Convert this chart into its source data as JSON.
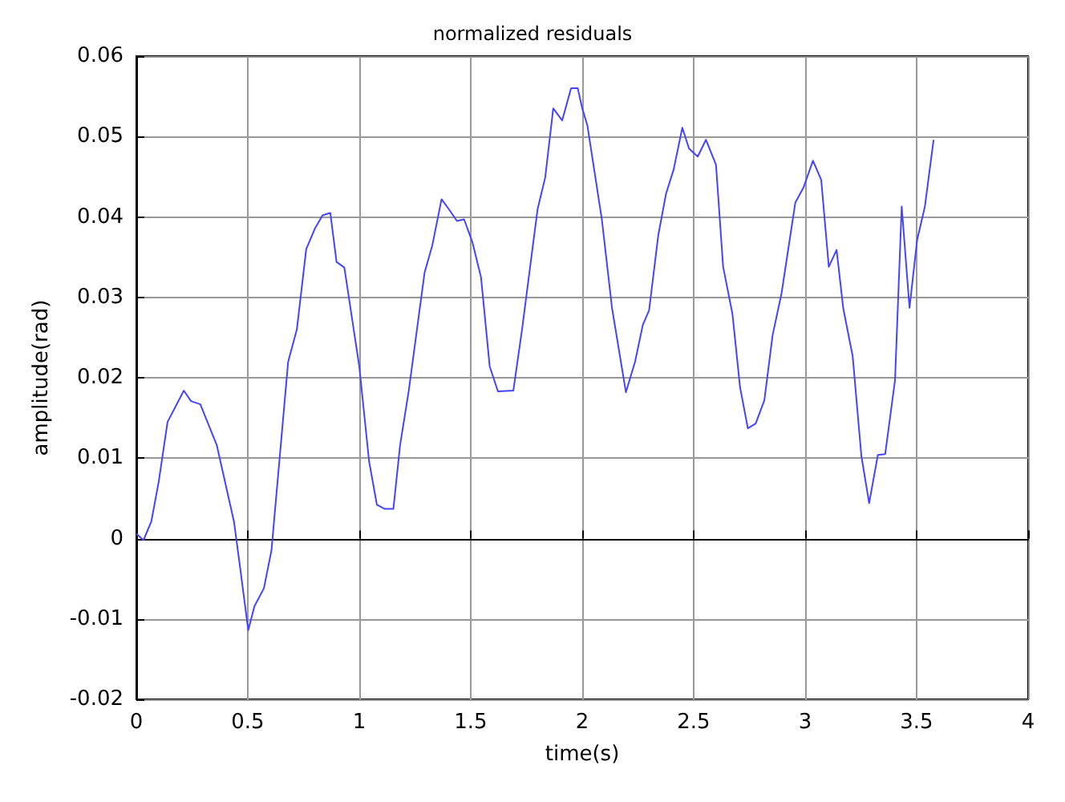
{
  "chart_data": {
    "type": "line",
    "title": "normalized residuals",
    "xlabel": "time(s)",
    "ylabel": "amplitude(rad)",
    "xlim": [
      0,
      4
    ],
    "xticks": [
      0,
      0.5,
      1,
      1.5,
      2,
      2.5,
      3,
      3.5,
      4
    ],
    "ylim": [
      -0.02,
      0.06
    ],
    "yticks": [
      -0.02,
      -0.01,
      0,
      0.01,
      0.02,
      0.03,
      0.04,
      0.05,
      0.06
    ],
    "grid": true,
    "marker": "none",
    "line_style": "solid",
    "x": [
      0,
      0.032,
      0.067,
      0.1,
      0.14,
      0.213,
      0.245,
      0.287,
      0.361,
      0.438,
      0.465,
      0.502,
      0.53,
      0.572,
      0.606,
      0.681,
      0.72,
      0.762,
      0.8,
      0.835,
      0.87,
      0.898,
      0.933,
      1.0,
      1.044,
      1.079,
      1.113,
      1.153,
      1.183,
      1.222,
      1.293,
      1.327,
      1.369,
      1.401,
      1.438,
      1.47,
      1.507,
      1.546,
      1.585,
      1.622,
      1.691,
      1.73,
      1.8,
      1.834,
      1.87,
      1.91,
      1.95,
      1.98,
      2.0,
      2.023,
      2.088,
      2.134,
      2.196,
      2.237,
      2.272,
      2.3,
      2.341,
      2.376,
      2.41,
      2.449,
      2.479,
      2.518,
      2.555,
      2.6,
      2.632,
      2.674,
      2.708,
      2.743,
      2.778,
      2.817,
      2.854,
      2.894,
      2.956,
      2.993,
      3.035,
      3.072,
      3.106,
      3.141,
      3.171,
      3.213,
      3.252,
      3.287,
      3.326,
      3.359,
      3.403,
      3.433,
      3.468,
      3.502,
      3.537,
      3.576
    ],
    "series": [
      {
        "color": "#4444ff",
        "values": [
          0.0006,
          -0.0002,
          0.0021,
          0.007,
          0.0145,
          0.0184,
          0.0171,
          0.0167,
          0.0116,
          0.0021,
          -0.0035,
          -0.0114,
          -0.0084,
          -0.0062,
          -0.0015,
          0.022,
          0.026,
          0.036,
          0.0385,
          0.0402,
          0.0405,
          0.0344,
          0.0337,
          0.0214,
          0.0096,
          0.0042,
          0.0037,
          0.0037,
          0.0116,
          0.0184,
          0.0331,
          0.0364,
          0.0422,
          0.041,
          0.0395,
          0.0397,
          0.0369,
          0.0325,
          0.0214,
          0.0183,
          0.0184,
          0.026,
          0.041,
          0.0449,
          0.0535,
          0.052,
          0.056,
          0.056,
          0.0535,
          0.0514,
          0.0397,
          0.0286,
          0.0182,
          0.022,
          0.0266,
          0.0284,
          0.0377,
          0.0429,
          0.0459,
          0.0511,
          0.0485,
          0.0475,
          0.0496,
          0.0465,
          0.0338,
          0.0279,
          0.0188,
          0.0137,
          0.0143,
          0.0172,
          0.0253,
          0.0305,
          0.0418,
          0.0437,
          0.047,
          0.0446,
          0.0338,
          0.0359,
          0.0286,
          0.0227,
          0.0103,
          0.0044,
          0.0104,
          0.0105,
          0.0197,
          0.0413,
          0.0287,
          0.0371,
          0.0413,
          0.0496
        ]
      }
    ]
  }
}
